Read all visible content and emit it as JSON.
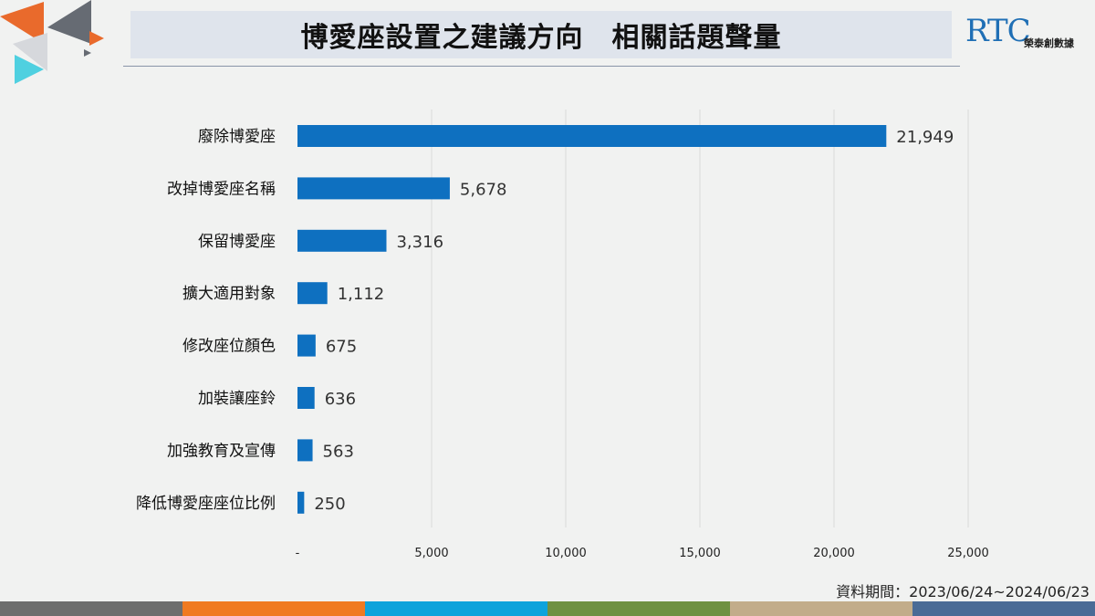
{
  "header": {
    "title": "博愛座設置之建議方向　相關話題聲量",
    "logo_mark": "RTC",
    "logo_text": "榮泰創數據"
  },
  "colors": {
    "bar": "#0e70c0",
    "grid": "#d9d9d9",
    "deco_gray": "#666b73",
    "deco_orange": "#e96a2c",
    "deco_cyan": "#4fd0e0",
    "deco_light": "#d6d8dc"
  },
  "bottom_stripes": [
    "#6e6e6e",
    "#f07a21",
    "#0ea3db",
    "#6f9142",
    "#c2ac8a",
    "#4a6b96"
  ],
  "footnote": "資料期間：2023/06/24~2024/06/23",
  "chart_data": {
    "type": "bar",
    "orientation": "horizontal",
    "title": "",
    "categories": [
      "廢除博愛座",
      "改掉博愛座名稱",
      "保留博愛座",
      "擴大適用對象",
      "修改座位顏色",
      "加裝讓座鈴",
      "加強教育及宣傳",
      "降低博愛座座位比例"
    ],
    "values": [
      21949,
      5678,
      3316,
      1112,
      675,
      636,
      563,
      250
    ],
    "value_labels": [
      "21,949",
      "5,678",
      "3,316",
      "1,112",
      "675",
      "636",
      "563",
      "250"
    ],
    "xlim": [
      0,
      25000
    ],
    "ticks": [
      0,
      5000,
      10000,
      15000,
      20000,
      25000
    ],
    "tick_labels": [
      "-",
      "5,000",
      "10,000",
      "15,000",
      "20,000",
      "25,000"
    ],
    "grid": true,
    "legend": "none"
  }
}
